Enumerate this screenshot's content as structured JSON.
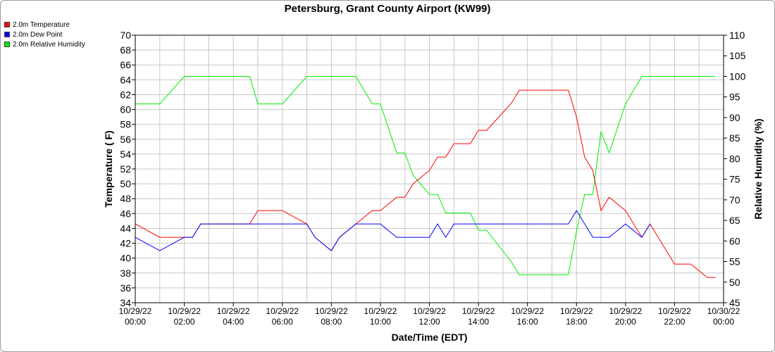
{
  "chart_data": {
    "type": "line",
    "title": "Petersburg, Grant County Airport (KW99)",
    "xlabel": "Date/Time (EDT)",
    "ylabel": "Temperature ( F)",
    "y2label": "Relative Humidity (%)",
    "ylim": [
      34,
      70
    ],
    "y2lim": [
      45,
      110
    ],
    "xlim": [
      "10/29/22 00:00",
      "10/30/22 00:00"
    ],
    "grid": true,
    "legend_position": "top-left",
    "x_tick_labels": [
      {
        "date": "10/29/22",
        "time": "00:00"
      },
      {
        "date": "10/29/22",
        "time": "02:00"
      },
      {
        "date": "10/29/22",
        "time": "04:00"
      },
      {
        "date": "10/29/22",
        "time": "06:00"
      },
      {
        "date": "10/29/22",
        "time": "08:00"
      },
      {
        "date": "10/29/22",
        "time": "10:00"
      },
      {
        "date": "10/29/22",
        "time": "12:00"
      },
      {
        "date": "10/29/22",
        "time": "14:00"
      },
      {
        "date": "10/29/22",
        "time": "16:00"
      },
      {
        "date": "10/29/22",
        "time": "18:00"
      },
      {
        "date": "10/29/22",
        "time": "20:00"
      },
      {
        "date": "10/29/22",
        "time": "22:00"
      },
      {
        "date": "10/30/22",
        "time": "00:00"
      }
    ],
    "y_tick_labels": [
      "34",
      "36",
      "38",
      "40",
      "42",
      "44",
      "46",
      "48",
      "50",
      "52",
      "54",
      "56",
      "58",
      "60",
      "62",
      "64",
      "66",
      "68",
      "70"
    ],
    "y2_tick_labels": [
      "45",
      "50",
      "55",
      "60",
      "65",
      "70",
      "75",
      "80",
      "85",
      "90",
      "95",
      "100",
      "105",
      "110"
    ],
    "series": [
      {
        "name": "2.0m Temperature",
        "color": "#ff0000",
        "axis": "left",
        "points": [
          [
            "10/29/22 00:00",
            44.6
          ],
          [
            "10/29/22 01:00",
            42.8
          ],
          [
            "10/29/22 02:00",
            42.8
          ],
          [
            "10/29/22 02:20",
            42.8
          ],
          [
            "10/29/22 02:40",
            44.6
          ],
          [
            "10/29/22 04:40",
            44.6
          ],
          [
            "10/29/22 05:00",
            46.4
          ],
          [
            "10/29/22 06:00",
            46.4
          ],
          [
            "10/29/22 07:00",
            44.6
          ],
          [
            "10/29/22 07:20",
            42.8
          ],
          [
            "10/29/22 08:00",
            41.0
          ],
          [
            "10/29/22 08:20",
            42.8
          ],
          [
            "10/29/22 09:00",
            44.6
          ],
          [
            "10/29/22 09:40",
            46.4
          ],
          [
            "10/29/22 10:00",
            46.4
          ],
          [
            "10/29/22 10:40",
            48.2
          ],
          [
            "10/29/22 11:00",
            48.2
          ],
          [
            "10/29/22 11:20",
            50.0
          ],
          [
            "10/29/22 12:00",
            51.8
          ],
          [
            "10/29/22 12:20",
            53.6
          ],
          [
            "10/29/22 12:40",
            53.6
          ],
          [
            "10/29/22 13:00",
            55.4
          ],
          [
            "10/29/22 13:40",
            55.4
          ],
          [
            "10/29/22 14:00",
            57.2
          ],
          [
            "10/29/22 14:20",
            57.2
          ],
          [
            "10/29/22 15:20",
            60.8
          ],
          [
            "10/29/22 15:40",
            62.6
          ],
          [
            "10/29/22 17:40",
            62.6
          ],
          [
            "10/29/22 18:00",
            59.0
          ],
          [
            "10/29/22 18:20",
            53.6
          ],
          [
            "10/29/22 18:40",
            51.8
          ],
          [
            "10/29/22 19:00",
            46.4
          ],
          [
            "10/29/22 19:20",
            48.2
          ],
          [
            "10/29/22 20:00",
            46.4
          ],
          [
            "10/29/22 20:40",
            42.8
          ],
          [
            "10/29/22 21:00",
            44.6
          ],
          [
            "10/29/22 22:00",
            39.2
          ],
          [
            "10/29/22 22:40",
            39.2
          ],
          [
            "10/29/22 23:20",
            37.4
          ],
          [
            "10/29/22 23:40",
            37.4
          ]
        ]
      },
      {
        "name": "2.0m Dew Point",
        "color": "#0000ff",
        "axis": "left",
        "points": [
          [
            "10/29/22 00:00",
            42.8
          ],
          [
            "10/29/22 01:00",
            41.0
          ],
          [
            "10/29/22 02:00",
            42.8
          ],
          [
            "10/29/22 02:20",
            42.8
          ],
          [
            "10/29/22 02:40",
            44.6
          ],
          [
            "10/29/22 07:00",
            44.6
          ],
          [
            "10/29/22 07:20",
            42.8
          ],
          [
            "10/29/22 08:00",
            41.0
          ],
          [
            "10/29/22 08:20",
            42.8
          ],
          [
            "10/29/22 09:00",
            44.6
          ],
          [
            "10/29/22 10:00",
            44.6
          ],
          [
            "10/29/22 10:40",
            42.8
          ],
          [
            "10/29/22 12:00",
            42.8
          ],
          [
            "10/29/22 12:20",
            44.6
          ],
          [
            "10/29/22 12:40",
            42.8
          ],
          [
            "10/29/22 13:00",
            44.6
          ],
          [
            "10/29/22 17:40",
            44.6
          ],
          [
            "10/29/22 18:00",
            46.4
          ],
          [
            "10/29/22 18:40",
            42.8
          ],
          [
            "10/29/22 19:20",
            42.8
          ],
          [
            "10/29/22 20:00",
            44.6
          ],
          [
            "10/29/22 20:40",
            42.8
          ],
          [
            "10/29/22 21:00",
            44.6
          ]
        ]
      },
      {
        "name": "2.0m Relative Humidity",
        "color": "#00ee00",
        "axis": "right",
        "points": [
          [
            "10/29/22 00:00",
            93.3
          ],
          [
            "10/29/22 01:00",
            93.3
          ],
          [
            "10/29/22 02:00",
            100
          ],
          [
            "10/29/22 04:40",
            100
          ],
          [
            "10/29/22 05:00",
            93.3
          ],
          [
            "10/29/22 06:00",
            93.3
          ],
          [
            "10/29/22 07:00",
            100
          ],
          [
            "10/29/22 09:00",
            100
          ],
          [
            "10/29/22 09:40",
            93.3
          ],
          [
            "10/29/22 10:00",
            93.3
          ],
          [
            "10/29/22 10:40",
            81.4
          ],
          [
            "10/29/22 11:00",
            81.4
          ],
          [
            "10/29/22 11:20",
            76.0
          ],
          [
            "10/29/22 12:00",
            71.3
          ],
          [
            "10/29/22 12:20",
            71.3
          ],
          [
            "10/29/22 12:40",
            66.8
          ],
          [
            "10/29/22 13:40",
            66.8
          ],
          [
            "10/29/22 14:00",
            62.6
          ],
          [
            "10/29/22 14:20",
            62.6
          ],
          [
            "10/29/22 15:20",
            55.0
          ],
          [
            "10/29/22 15:40",
            51.8
          ],
          [
            "10/29/22 17:40",
            51.8
          ],
          [
            "10/29/22 18:00",
            62.4
          ],
          [
            "10/29/22 18:20",
            71.3
          ],
          [
            "10/29/22 18:40",
            71.3
          ],
          [
            "10/29/22 19:00",
            86.6
          ],
          [
            "10/29/22 19:20",
            81.4
          ],
          [
            "10/29/22 20:00",
            93.3
          ],
          [
            "10/29/22 20:40",
            100
          ],
          [
            "10/29/22 23:40",
            100
          ]
        ]
      }
    ]
  }
}
